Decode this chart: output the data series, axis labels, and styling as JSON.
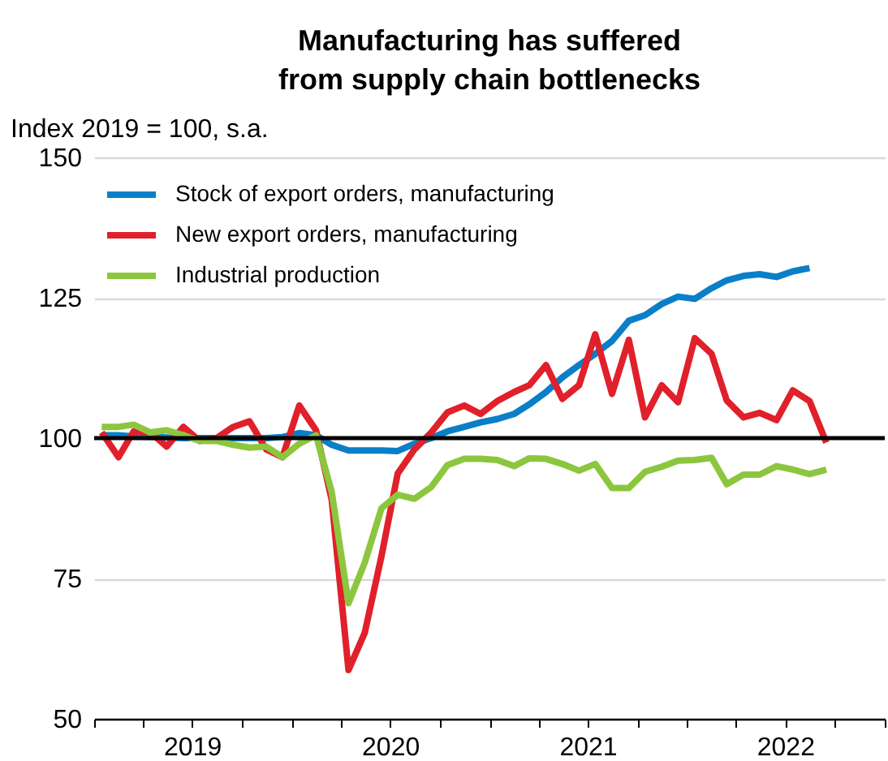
{
  "chart_data": {
    "type": "line",
    "title": "Manufacturing has suffered from supply chain bottlenecks",
    "ylabel": "Index 2019 = 100, s.a.",
    "x": [
      "2019-01-15",
      "2019-02-15",
      "2019-03-15",
      "2019-04-15",
      "2019-05-15",
      "2019-06-15",
      "2019-07-15",
      "2019-08-15",
      "2019-09-15",
      "2019-10-15",
      "2019-11-15",
      "2019-12-15",
      "2020-01-15",
      "2020-02-15",
      "2020-03-15",
      "2020-04-15",
      "2020-05-15",
      "2020-06-15",
      "2020-07-15",
      "2020-08-15",
      "2020-09-15",
      "2020-10-15",
      "2020-11-15",
      "2020-12-15",
      "2021-01-15",
      "2021-02-15",
      "2021-03-15",
      "2021-04-15",
      "2021-05-15",
      "2021-06-15",
      "2021-07-15",
      "2021-08-15",
      "2021-09-15",
      "2021-10-15",
      "2021-11-15",
      "2021-12-15",
      "2022-01-15",
      "2022-02-15",
      "2022-03-15",
      "2022-04-15",
      "2022-05-15",
      "2022-06-15",
      "2022-07-15",
      "2022-08-15",
      "2022-09-15"
    ],
    "series": [
      {
        "name": "Stock of export orders, manufacturing",
        "color": "#0a7fc8",
        "values": [
          100.5,
          100.5,
          100.3,
          100.2,
          100.1,
          100,
          100,
          100,
          100,
          100,
          100,
          100.2,
          100.9,
          100.5,
          98.8,
          97.8,
          97.8,
          97.8,
          97.7,
          99,
          100,
          101.2,
          102,
          102.8,
          103.4,
          104.3,
          106,
          108.2,
          110.8,
          113,
          115,
          117.3,
          120.9,
          121.9,
          123.9,
          125.2,
          124.8,
          126.7,
          128.1,
          128.9,
          129.2,
          128.7,
          129.7,
          130.3,
          null
        ]
      },
      {
        "name": "New export orders, manufacturing",
        "color": "#e0202a",
        "values": [
          101,
          96.6,
          101.2,
          101,
          98.5,
          102,
          99.5,
          100,
          102,
          103,
          98,
          96.6,
          105.8,
          101.4,
          89,
          58.7,
          65.3,
          79,
          93.7,
          98,
          101,
          104.6,
          105.8,
          104.3,
          106.6,
          108.2,
          109.4,
          113,
          107,
          109.4,
          118.5,
          107.9,
          117.5,
          103.7,
          109.4,
          106.4,
          117.8,
          115,
          106.7,
          103.7,
          104.5,
          103.2,
          108.5,
          106.6,
          99.2
        ]
      },
      {
        "name": "Industrial production",
        "color": "#8cc63f",
        "values": [
          102,
          102,
          102.4,
          101,
          101.4,
          100.5,
          99.5,
          99.5,
          98.8,
          98.3,
          98.5,
          96.6,
          99,
          100.5,
          90.4,
          70.6,
          77.8,
          87.5,
          89.9,
          89.2,
          91.3,
          95.2,
          96.3,
          96.3,
          96.1,
          95,
          96.4,
          96.3,
          95.4,
          94.2,
          95.4,
          91.1,
          91.1,
          94,
          94.9,
          96,
          96.1,
          96.5,
          91.8,
          93.5,
          93.5,
          95,
          94.4,
          93.6,
          94.4
        ]
      }
    ],
    "xlim": [
      "2019-01-01",
      "2023-01-01"
    ],
    "xticks": [
      {
        "value": "2019-01-01",
        "label": null
      },
      {
        "value": "2019-04-01",
        "label": null
      },
      {
        "value": "2019-07-01",
        "label": "2019"
      },
      {
        "value": "2019-10-01",
        "label": null
      },
      {
        "value": "2020-01-01",
        "label": null
      },
      {
        "value": "2020-04-01",
        "label": null
      },
      {
        "value": "2020-07-01",
        "label": "2020"
      },
      {
        "value": "2020-10-01",
        "label": null
      },
      {
        "value": "2021-01-01",
        "label": null
      },
      {
        "value": "2021-04-01",
        "label": null
      },
      {
        "value": "2021-07-01",
        "label": "2021"
      },
      {
        "value": "2021-10-01",
        "label": null
      },
      {
        "value": "2022-01-01",
        "label": null
      },
      {
        "value": "2022-04-01",
        "label": null
      },
      {
        "value": "2022-07-01",
        "label": "2022"
      },
      {
        "value": "2022-10-01",
        "label": null
      },
      {
        "value": "2023-01-01",
        "label": null
      }
    ],
    "ylim": [
      50,
      150
    ],
    "yticks": [
      50,
      75,
      100,
      125,
      150
    ],
    "ref_lines": [
      {
        "axis": "y",
        "value": 100,
        "color": "#000000"
      }
    ],
    "grid": "y",
    "legend": "top left",
    "line_style": "solid",
    "marker": "none"
  }
}
